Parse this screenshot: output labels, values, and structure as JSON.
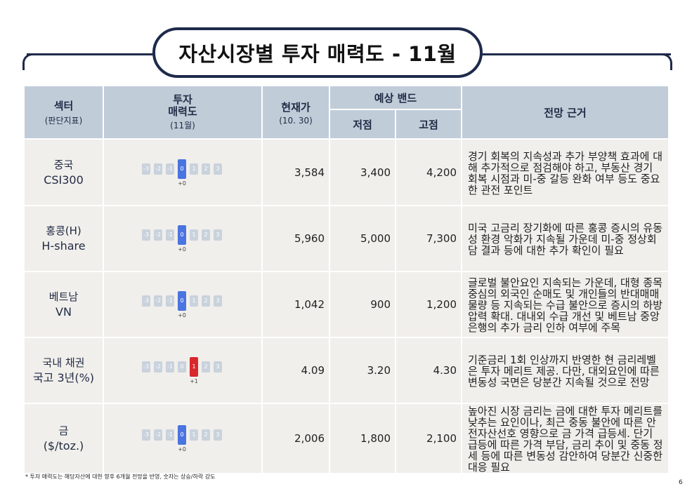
{
  "title": "자산시장별 투자 매력도 - 11월",
  "header": {
    "sector": "섹터",
    "sector_sub": "(판단지표)",
    "attract": "투자\n매력도",
    "attract_sub": "(11월)",
    "price": "현재가",
    "price_sub": "(10. 30)",
    "band": "예상 밴드",
    "low": "저점",
    "high": "고점",
    "reason": "전망 근거"
  },
  "scale_labels": [
    "-3",
    "-2",
    "-1",
    "0",
    "1",
    "2",
    "3"
  ],
  "rows": [
    {
      "name_line1": "중국",
      "name_line2": "CSI300",
      "score": 0,
      "score_label": "+0",
      "price": "3,584",
      "low": "3,400",
      "high": "4,200",
      "reason": "경기 회복의 지속성과 추가 부양책 효과에 대해 추가적으로 점검해야 하고, 부동산 경기 회복 시점과 미-중 갈등 완화 여부 등도 중요한 관전 포인트"
    },
    {
      "name_line1": "홍콩(H)",
      "name_line2": "H-share",
      "score": 0,
      "score_label": "+0",
      "price": "5,960",
      "low": "5,000",
      "high": "7,300",
      "reason": "미국 고금리 장기화에 따른 홍콩 증시의 유동성 환경 악화가 지속될 가운데 미-중 정상회담 결과 등에 대한 추가 확인이 필요"
    },
    {
      "name_line1": "베트남",
      "name_line2": "VN",
      "score": 0,
      "score_label": "+0",
      "price": "1,042",
      "low": "900",
      "high": "1,200",
      "reason": "글로벌 불안요인 지속되는 가운데, 대형 종목 중심의 외국인 순매도 및 개인들의 반대매매 물량 등 지속되는 수급 불안으로 증시의 하방 압력 확대. 대내외 수급 개선 및 베트남 중앙은행의 추가 금리 인하 여부에 주목"
    },
    {
      "name_line1": "국내 채권",
      "name_line2": "국고 3년(%)",
      "score": 1,
      "score_label": "+1",
      "price": "4.09",
      "low": "3.20",
      "high": "4.30",
      "reason": "기준금리 1회 인상까지 반영한 현 금리레벨은 투자 메리트 제공. 다만, 대외요인에 따른 변동성 국면은 당분간 지속될 것으로 전망"
    },
    {
      "name_line1": "금",
      "name_line2": "($/toz.)",
      "score": 0,
      "score_label": "+0",
      "price": "2,006",
      "low": "1,800",
      "high": "2,100",
      "reason": "높아진 시장 금리는 금에 대한 투자 메리트를 낮추는 요인이나, 최근 중동 불안에 따른 안전자산선호 영향으로 금 가격 급등세. 단기 급등에 따른 가격 부담, 금리 추이 및 중동 정세 등에 따른 변동성 감안하여 당분간 신중한 대응 필요"
    }
  ],
  "footnote": "* 투자 매력도는 해당자산에 대한 향후 6개월 전망을 반영, 숫자는 상승/하락 강도",
  "page_number": "6",
  "colors": {
    "navy": "#1e2a4a",
    "header_bg": "#c1ccd9",
    "row_bg": "#f1efeb",
    "neutral_active": "#4a74e0",
    "positive_active": "#d9282c",
    "inactive": "#c9d2dd"
  }
}
